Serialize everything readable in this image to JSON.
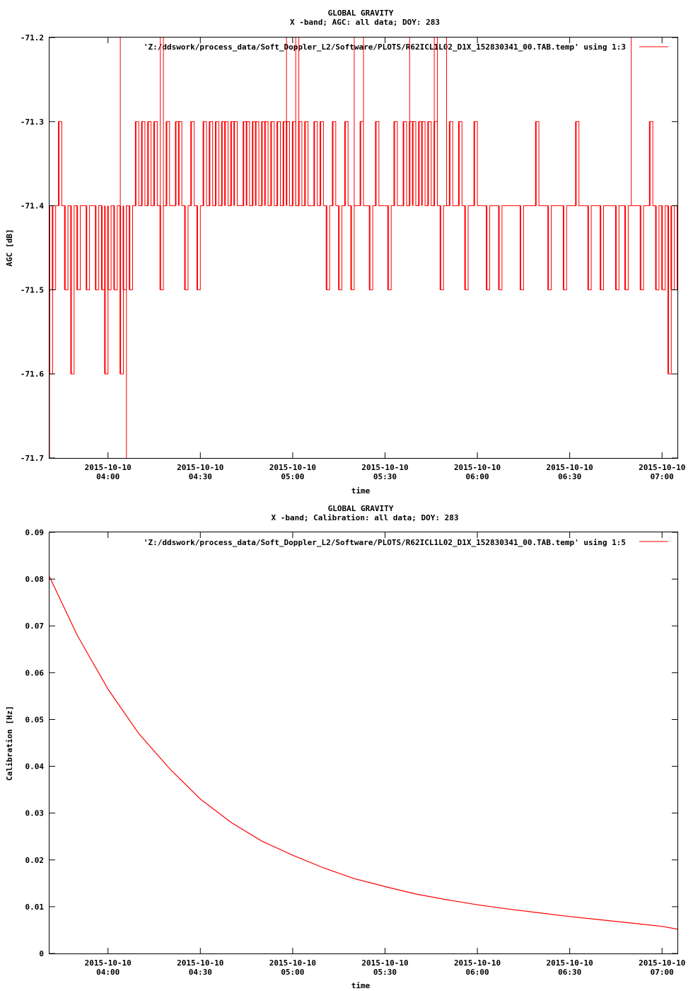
{
  "colors": {
    "series": "#ff0000",
    "background": "#ffffff",
    "axes": "#000000"
  },
  "chart_data": [
    {
      "type": "line",
      "title": "GLOBAL GRAVITY",
      "subtitle": "X -band; AGC: all data; DOY: 283",
      "xlabel": "time",
      "ylabel": "AGC [dB]",
      "xlim": [
        "2015-10-10 03:41",
        "2015-10-10 07:05"
      ],
      "ylim": [
        -71.7,
        -71.2
      ],
      "yticks": [
        "-71.2",
        "-71.3",
        "-71.4",
        "-71.5",
        "-71.6",
        "-71.7"
      ],
      "xticks": [
        {
          "x": "2015-10-10 04:00",
          "date": "2015-10-10",
          "time": "04:00"
        },
        {
          "x": "2015-10-10 04:30",
          "date": "2015-10-10",
          "time": "04:30"
        },
        {
          "x": "2015-10-10 05:00",
          "date": "2015-10-10",
          "time": "05:00"
        },
        {
          "x": "2015-10-10 05:30",
          "date": "2015-10-10",
          "time": "05:30"
        },
        {
          "x": "2015-10-10 06:00",
          "date": "2015-10-10",
          "time": "06:00"
        },
        {
          "x": "2015-10-10 06:30",
          "date": "2015-10-10",
          "time": "06:30"
        },
        {
          "x": "2015-10-10 07:00",
          "date": "2015-10-10",
          "time": "07:00"
        }
      ],
      "legend": "top-right",
      "grid": false,
      "series": [
        {
          "name": "'Z:/ddswork/process_data/Soft_Doppler_L2/Software/PLOTS/R62ICL1L02_D1X_152830341_00.TAB.temp' using 1:3",
          "values_note": "",
          "x": [
            "2015-10-10 03:41",
            "2015-10-10 03:42",
            "2015-10-10 03:43",
            "2015-10-10 03:44",
            "2015-10-10 03:45",
            "2015-10-10 03:46",
            "2015-10-10 03:47",
            "2015-10-10 03:48",
            "2015-10-10 03:49",
            "2015-10-10 03:50",
            "2015-10-10 03:51",
            "2015-10-10 03:52",
            "2015-10-10 03:53",
            "2015-10-10 03:54",
            "2015-10-10 03:55",
            "2015-10-10 03:56",
            "2015-10-10 03:57",
            "2015-10-10 03:58",
            "2015-10-10 03:59",
            "2015-10-10 04:00",
            "2015-10-10 04:01",
            "2015-10-10 04:02",
            "2015-10-10 04:03",
            "2015-10-10 04:04",
            "2015-10-10 04:05",
            "2015-10-10 04:06",
            "2015-10-10 04:07",
            "2015-10-10 04:08",
            "2015-10-10 04:09",
            "2015-10-10 04:10",
            "2015-10-10 04:11",
            "2015-10-10 04:12",
            "2015-10-10 04:13",
            "2015-10-10 04:14",
            "2015-10-10 04:15",
            "2015-10-10 04:16",
            "2015-10-10 04:17",
            "2015-10-10 04:18",
            "2015-10-10 04:19",
            "2015-10-10 04:20",
            "2015-10-10 04:21",
            "2015-10-10 04:22",
            "2015-10-10 04:23",
            "2015-10-10 04:24",
            "2015-10-10 04:25",
            "2015-10-10 04:26",
            "2015-10-10 04:27",
            "2015-10-10 04:28",
            "2015-10-10 04:29",
            "2015-10-10 04:30",
            "2015-10-10 04:31",
            "2015-10-10 04:32",
            "2015-10-10 04:33",
            "2015-10-10 04:34",
            "2015-10-10 04:35",
            "2015-10-10 04:36",
            "2015-10-10 04:37",
            "2015-10-10 04:38",
            "2015-10-10 04:39",
            "2015-10-10 04:40",
            "2015-10-10 04:41",
            "2015-10-10 04:42",
            "2015-10-10 04:43",
            "2015-10-10 04:44",
            "2015-10-10 04:45",
            "2015-10-10 04:46",
            "2015-10-10 04:47",
            "2015-10-10 04:48",
            "2015-10-10 04:49",
            "2015-10-10 04:50",
            "2015-10-10 04:51",
            "2015-10-10 04:52",
            "2015-10-10 04:53",
            "2015-10-10 04:54",
            "2015-10-10 04:55",
            "2015-10-10 04:56",
            "2015-10-10 04:57",
            "2015-10-10 04:58",
            "2015-10-10 04:59",
            "2015-10-10 05:00",
            "2015-10-10 05:01",
            "2015-10-10 05:02",
            "2015-10-10 05:03",
            "2015-10-10 05:04",
            "2015-10-10 05:05",
            "2015-10-10 05:06",
            "2015-10-10 05:07",
            "2015-10-10 05:08",
            "2015-10-10 05:09",
            "2015-10-10 05:10",
            "2015-10-10 05:11",
            "2015-10-10 05:12",
            "2015-10-10 05:13",
            "2015-10-10 05:14",
            "2015-10-10 05:15",
            "2015-10-10 05:16",
            "2015-10-10 05:17",
            "2015-10-10 05:18",
            "2015-10-10 05:19",
            "2015-10-10 05:20",
            "2015-10-10 05:21",
            "2015-10-10 05:22",
            "2015-10-10 05:23",
            "2015-10-10 05:24",
            "2015-10-10 05:25",
            "2015-10-10 05:26",
            "2015-10-10 05:27",
            "2015-10-10 05:28",
            "2015-10-10 05:29",
            "2015-10-10 05:30",
            "2015-10-10 05:31",
            "2015-10-10 05:32",
            "2015-10-10 05:33",
            "2015-10-10 05:34",
            "2015-10-10 05:35",
            "2015-10-10 05:36",
            "2015-10-10 05:37",
            "2015-10-10 05:38",
            "2015-10-10 05:39",
            "2015-10-10 05:40",
            "2015-10-10 05:41",
            "2015-10-10 05:42",
            "2015-10-10 05:43",
            "2015-10-10 05:44",
            "2015-10-10 05:45",
            "2015-10-10 05:46",
            "2015-10-10 05:47",
            "2015-10-10 05:48",
            "2015-10-10 05:49",
            "2015-10-10 05:50",
            "2015-10-10 05:51",
            "2015-10-10 05:52",
            "2015-10-10 05:53",
            "2015-10-10 05:54",
            "2015-10-10 05:55",
            "2015-10-10 05:56",
            "2015-10-10 05:57",
            "2015-10-10 05:58",
            "2015-10-10 05:59",
            "2015-10-10 06:00",
            "2015-10-10 06:01",
            "2015-10-10 06:02",
            "2015-10-10 06:03",
            "2015-10-10 06:04",
            "2015-10-10 06:05",
            "2015-10-10 06:06",
            "2015-10-10 06:07",
            "2015-10-10 06:08",
            "2015-10-10 06:09",
            "2015-10-10 06:10",
            "2015-10-10 06:11",
            "2015-10-10 06:12",
            "2015-10-10 06:13",
            "2015-10-10 06:14",
            "2015-10-10 06:15",
            "2015-10-10 06:16",
            "2015-10-10 06:17",
            "2015-10-10 06:18",
            "2015-10-10 06:19",
            "2015-10-10 06:20",
            "2015-10-10 06:21",
            "2015-10-10 06:22",
            "2015-10-10 06:23",
            "2015-10-10 06:24",
            "2015-10-10 06:25",
            "2015-10-10 06:26",
            "2015-10-10 06:27",
            "2015-10-10 06:28",
            "2015-10-10 06:29",
            "2015-10-10 06:30",
            "2015-10-10 06:31",
            "2015-10-10 06:32",
            "2015-10-10 06:33",
            "2015-10-10 06:34",
            "2015-10-10 06:35",
            "2015-10-10 06:36",
            "2015-10-10 06:37",
            "2015-10-10 06:38",
            "2015-10-10 06:39",
            "2015-10-10 06:40",
            "2015-10-10 06:41",
            "2015-10-10 06:42",
            "2015-10-10 06:43",
            "2015-10-10 06:44",
            "2015-10-10 06:45",
            "2015-10-10 06:46",
            "2015-10-10 06:47",
            "2015-10-10 06:48",
            "2015-10-10 06:49",
            "2015-10-10 06:50",
            "2015-10-10 06:51",
            "2015-10-10 06:52",
            "2015-10-10 06:53",
            "2015-10-10 06:54",
            "2015-10-10 06:55",
            "2015-10-10 06:56",
            "2015-10-10 06:57",
            "2015-10-10 06:58",
            "2015-10-10 06:59",
            "2015-10-10 07:00",
            "2015-10-10 07:01",
            "2015-10-10 07:02",
            "2015-10-10 07:03",
            "2015-10-10 07:04",
            "2015-10-10 07:05"
          ],
          "y": [
            -71.6,
            -71.5,
            -71.4,
            -71.3,
            -71.4,
            -71.5,
            -71.4,
            -71.6,
            -71.4,
            -71.5,
            -71.4,
            -71.4,
            -71.5,
            -71.4,
            -71.4,
            -71.5,
            -71.4,
            -71.5,
            -71.6,
            -71.5,
            -71.4,
            -71.5,
            -71.4,
            -71.6,
            -71.5,
            -71.4,
            -71.5,
            -71.4,
            -71.3,
            -71.4,
            -71.3,
            -71.4,
            -71.3,
            -71.4,
            -71.3,
            -71.4,
            -71.5,
            -71.4,
            -71.3,
            -71.4,
            -71.4,
            -71.3,
            -71.3,
            -71.4,
            -71.5,
            -71.4,
            -71.3,
            -71.4,
            -71.5,
            -71.4,
            -71.3,
            -71.4,
            -71.3,
            -71.4,
            -71.3,
            -71.4,
            -71.3,
            -71.3,
            -71.4,
            -71.3,
            -71.3,
            -71.4,
            -71.4,
            -71.3,
            -71.3,
            -71.4,
            -71.3,
            -71.3,
            -71.4,
            -71.3,
            -71.3,
            -71.4,
            -71.3,
            -71.4,
            -71.3,
            -71.4,
            -71.3,
            -71.3,
            -71.4,
            -71.3,
            -71.4,
            -71.3,
            -71.4,
            -71.3,
            -71.4,
            -71.4,
            -71.3,
            -71.4,
            -71.3,
            -71.4,
            -71.5,
            -71.4,
            -71.3,
            -71.4,
            -71.5,
            -71.4,
            -71.3,
            -71.4,
            -71.5,
            -71.4,
            -71.4,
            -71.3,
            -71.4,
            -71.4,
            -71.5,
            -71.4,
            -71.3,
            -71.4,
            -71.4,
            -71.4,
            -71.5,
            -71.4,
            -71.3,
            -71.4,
            -71.4,
            -71.3,
            -71.4,
            -71.3,
            -71.3,
            -71.4,
            -71.3,
            -71.3,
            -71.4,
            -71.3,
            -71.4,
            -71.3,
            -71.4,
            -71.5,
            -71.4,
            -71.4,
            -71.3,
            -71.4,
            -71.4,
            -71.3,
            -71.4,
            -71.5,
            -71.4,
            -71.4,
            -71.3,
            -71.4,
            -71.4,
            -71.4,
            -71.5,
            -71.4,
            -71.4,
            -71.4,
            -71.5,
            -71.4,
            -71.4,
            -71.4,
            -71.4,
            -71.4,
            -71.4,
            -71.5,
            -71.4,
            -71.4,
            -71.4,
            -71.4,
            -71.3,
            -71.4,
            -71.4,
            -71.4,
            -71.5,
            -71.4,
            -71.4,
            -71.4,
            -71.4,
            -71.5,
            -71.4,
            -71.4,
            -71.4,
            -71.3,
            -71.4,
            -71.4,
            -71.4,
            -71.5,
            -71.4,
            -71.4,
            -71.4,
            -71.5,
            -71.4,
            -71.4,
            -71.4,
            -71.4,
            -71.5,
            -71.4,
            -71.4,
            -71.5,
            -71.4,
            -71.4,
            -71.4,
            -71.4,
            -71.5,
            -71.4,
            -71.4,
            -71.3,
            -71.4,
            -71.5,
            -71.4,
            -71.5,
            -71.4,
            -71.6,
            -71.5,
            -71.4,
            -71.5
          ],
          "spikes": [
            {
              "x": "2015-10-10 03:41",
              "y": -71.7
            },
            {
              "x": "2015-10-10 04:04",
              "y": -71.2
            },
            {
              "x": "2015-10-10 04:06",
              "y": -71.7
            },
            {
              "x": "2015-10-10 04:17",
              "y": -71.2
            },
            {
              "x": "2015-10-10 04:18",
              "y": -71.2
            },
            {
              "x": "2015-10-10 04:58",
              "y": -71.2
            },
            {
              "x": "2015-10-10 05:01",
              "y": -71.2
            },
            {
              "x": "2015-10-10 05:02",
              "y": -71.2
            },
            {
              "x": "2015-10-10 05:20",
              "y": -71.2
            },
            {
              "x": "2015-10-10 05:23",
              "y": -71.2
            },
            {
              "x": "2015-10-10 05:38",
              "y": -71.2
            },
            {
              "x": "2015-10-10 05:46",
              "y": -71.2
            },
            {
              "x": "2015-10-10 05:47",
              "y": -71.2
            },
            {
              "x": "2015-10-10 05:50",
              "y": -71.2
            },
            {
              "x": "2015-10-10 06:50",
              "y": -71.2
            }
          ]
        }
      ]
    },
    {
      "type": "line",
      "title": "GLOBAL GRAVITY",
      "subtitle": "X -band; Calibration: all data; DOY: 283",
      "xlabel": "time",
      "ylabel": "Calibration [Hz]",
      "xlim": [
        "2015-10-10 03:41",
        "2015-10-10 07:05"
      ],
      "ylim": [
        0,
        0.09
      ],
      "yticks": [
        "0.09",
        "0.08",
        "0.07",
        "0.06",
        "0.05",
        "0.04",
        "0.03",
        "0.02",
        "0.01",
        "0"
      ],
      "xticks": [
        {
          "x": "2015-10-10 04:00",
          "date": "2015-10-10",
          "time": "04:00"
        },
        {
          "x": "2015-10-10 04:30",
          "date": "2015-10-10",
          "time": "04:30"
        },
        {
          "x": "2015-10-10 05:00",
          "date": "2015-10-10",
          "time": "05:00"
        },
        {
          "x": "2015-10-10 05:30",
          "date": "2015-10-10",
          "time": "05:30"
        },
        {
          "x": "2015-10-10 06:00",
          "date": "2015-10-10",
          "time": "06:00"
        },
        {
          "x": "2015-10-10 06:30",
          "date": "2015-10-10",
          "time": "06:30"
        },
        {
          "x": "2015-10-10 07:00",
          "date": "2015-10-10",
          "time": "07:00"
        }
      ],
      "legend": "top-right",
      "grid": false,
      "series": [
        {
          "name": "'Z:/ddswork/process_data/Soft_Doppler_L2/Software/PLOTS/R62ICL1L02_D1X_152830341_00.TAB.temp' using 1:5",
          "x": [
            "2015-10-10 03:41",
            "2015-10-10 03:50",
            "2015-10-10 04:00",
            "2015-10-10 04:10",
            "2015-10-10 04:20",
            "2015-10-10 04:30",
            "2015-10-10 04:40",
            "2015-10-10 04:50",
            "2015-10-10 05:00",
            "2015-10-10 05:10",
            "2015-10-10 05:20",
            "2015-10-10 05:30",
            "2015-10-10 05:40",
            "2015-10-10 05:50",
            "2015-10-10 06:00",
            "2015-10-10 06:10",
            "2015-10-10 06:20",
            "2015-10-10 06:30",
            "2015-10-10 06:40",
            "2015-10-10 06:50",
            "2015-10-10 07:00",
            "2015-10-10 07:05"
          ],
          "y": [
            0.0805,
            0.068,
            0.0565,
            0.047,
            0.0395,
            0.033,
            0.028,
            0.024,
            0.021,
            0.0183,
            0.016,
            0.0143,
            0.0127,
            0.0115,
            0.0104,
            0.0095,
            0.0087,
            0.0079,
            0.0072,
            0.0065,
            0.0058,
            0.0052
          ]
        }
      ]
    }
  ]
}
